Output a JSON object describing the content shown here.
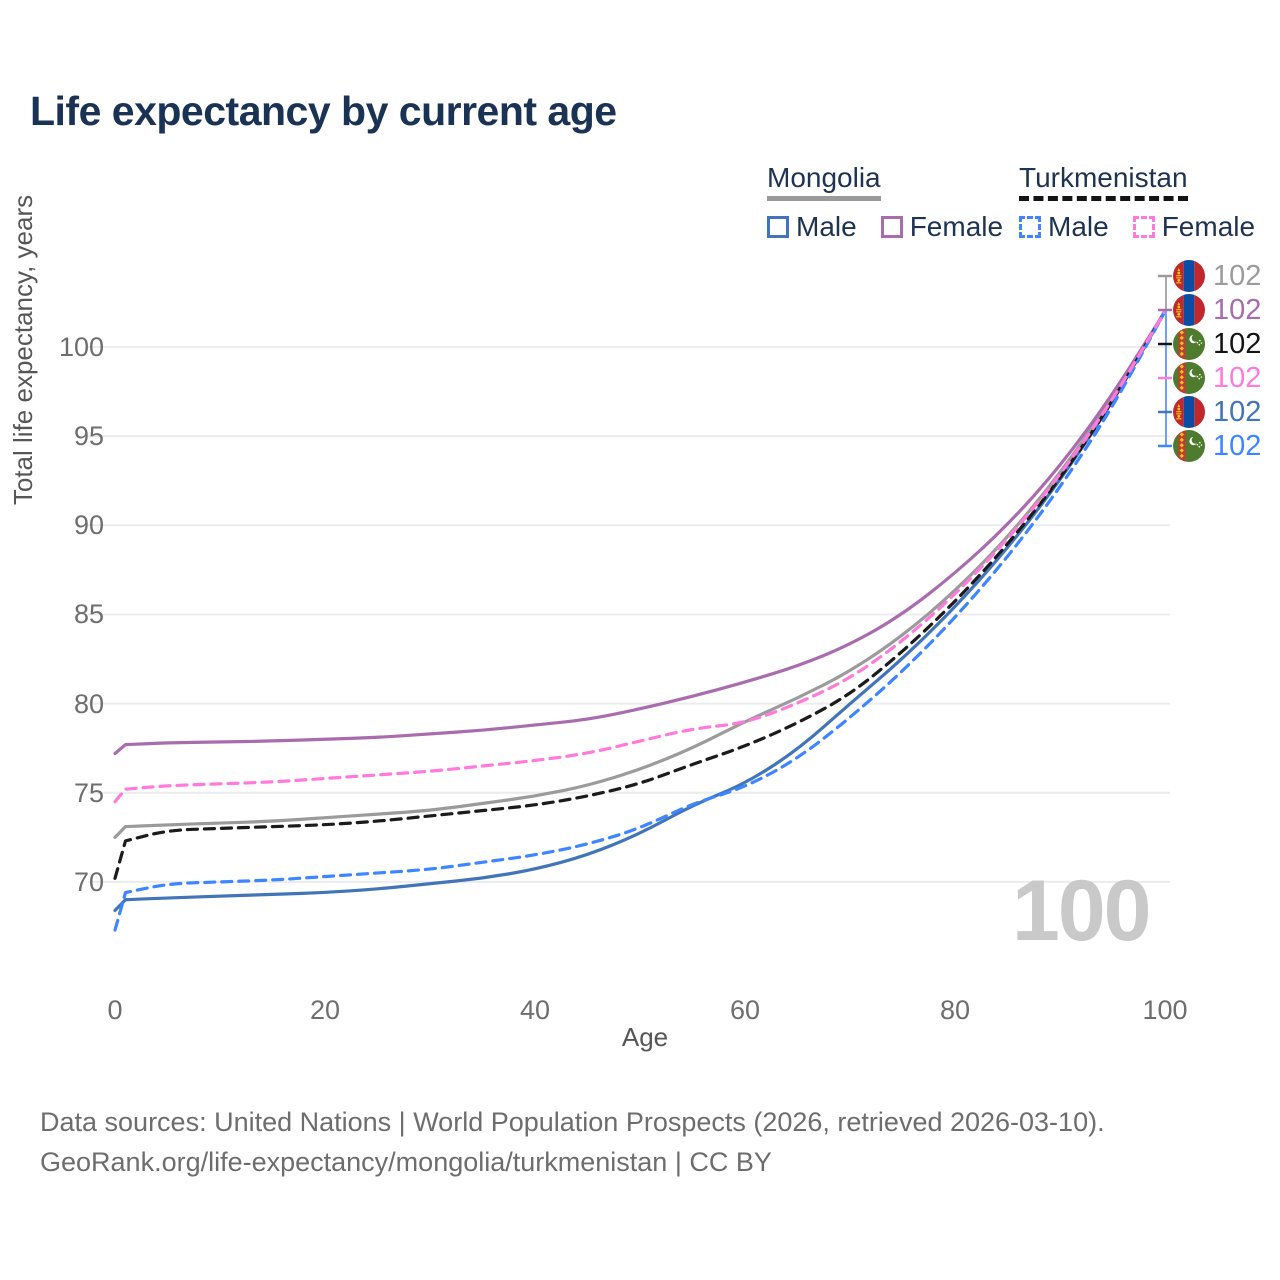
{
  "title": "Life expectancy by current age",
  "legend": {
    "mongolia": {
      "label": "Mongolia",
      "male_label": "Male",
      "female_label": "Female"
    },
    "turkmenistan": {
      "label": "Turkmenistan",
      "male_label": "Male",
      "female_label": "Female"
    }
  },
  "y_axis": {
    "title": "Total life expectancy, years",
    "ticks": [
      100,
      95,
      90,
      85,
      80,
      75,
      70
    ]
  },
  "x_axis": {
    "title": "Age",
    "ticks": [
      0,
      20,
      40,
      60,
      80,
      100
    ]
  },
  "watermark": "100",
  "colors": {
    "mongolia_both": "#9b9b9b",
    "mongolia_female": "#a96cae",
    "mongolia_male": "#4274b8",
    "turkmenistan_both": "#1b1b1b",
    "turkmenistan_female": "#ff7bdb",
    "turkmenistan_male": "#3e86ff",
    "title_text": "#1a3354",
    "gridline": "#ececec",
    "axis_text": "#6e6e6e"
  },
  "end_labels": [
    {
      "series": "mongolia-both",
      "flag": "mongolia",
      "value": "102",
      "color": "#9b9b9b"
    },
    {
      "series": "mongolia-female",
      "flag": "mongolia",
      "value": "102",
      "color": "#a96cae"
    },
    {
      "series": "turkmenistan-both",
      "flag": "turkmenistan",
      "value": "102",
      "color": "#141414"
    },
    {
      "series": "turkmenistan-female",
      "flag": "turkmenistan",
      "value": "102",
      "color": "#ff7bdb"
    },
    {
      "series": "mongolia-male",
      "flag": "mongolia",
      "value": "102",
      "color": "#4274b8"
    },
    {
      "series": "turkmenistan-male",
      "flag": "turkmenistan",
      "value": "102",
      "color": "#3e86ff"
    }
  ],
  "footer": {
    "line1": "Data sources: United Nations | World Population Prospects (2026, retrieved 2026-03-10).",
    "line2": "GeoRank.org/life-expectancy/mongolia/turkmenistan | CC BY"
  },
  "chart_data": {
    "type": "line",
    "title": "Life expectancy by current age",
    "xlabel": "Age",
    "ylabel": "Total life expectancy, years",
    "xlim": [
      0,
      100
    ],
    "ylim": [
      66,
      103
    ],
    "grid": "horizontal-only",
    "legend_position": "top-right",
    "x": [
      0,
      1,
      5,
      10,
      15,
      20,
      25,
      30,
      35,
      40,
      45,
      50,
      55,
      60,
      65,
      70,
      75,
      80,
      85,
      90,
      95,
      100
    ],
    "series": [
      {
        "name": "Mongolia — Both sexes",
        "country": "Mongolia",
        "sex": "Both",
        "style": "solid",
        "color": "#9b9b9b",
        "values": [
          72.5,
          73.1,
          73.2,
          73.3,
          73.4,
          73.6,
          73.8,
          74.0,
          74.4,
          74.8,
          75.4,
          76.3,
          77.5,
          79.0,
          80.3,
          81.8,
          83.8,
          86.3,
          89.3,
          92.9,
          97.1,
          102
        ]
      },
      {
        "name": "Mongolia — Male",
        "country": "Mongolia",
        "sex": "Male",
        "style": "solid",
        "color": "#4274b8",
        "values": [
          68.4,
          69.0,
          69.1,
          69.2,
          69.3,
          69.4,
          69.6,
          69.9,
          70.2,
          70.7,
          71.5,
          72.7,
          74.3,
          75.5,
          77.4,
          80.0,
          82.5,
          85.4,
          88.7,
          92.5,
          96.9,
          102
        ]
      },
      {
        "name": "Mongolia — Female",
        "country": "Mongolia",
        "sex": "Female",
        "style": "solid",
        "color": "#a96cae",
        "values": [
          77.2,
          77.7,
          77.8,
          77.85,
          77.9,
          78.0,
          78.1,
          78.3,
          78.5,
          78.8,
          79.1,
          79.7,
          80.4,
          81.2,
          82.1,
          83.3,
          85.0,
          87.3,
          90.0,
          93.3,
          97.3,
          102
        ]
      },
      {
        "name": "Turkmenistan — Both sexes",
        "country": "Turkmenistan",
        "sex": "Both",
        "style": "dashed",
        "color": "#1b1b1b",
        "values": [
          70.2,
          72.3,
          72.9,
          73.0,
          73.1,
          73.2,
          73.4,
          73.7,
          74.0,
          74.3,
          74.8,
          75.5,
          76.6,
          77.6,
          78.9,
          80.5,
          82.9,
          85.7,
          88.9,
          92.6,
          96.9,
          102
        ]
      },
      {
        "name": "Turkmenistan — Male",
        "country": "Turkmenistan",
        "sex": "Male",
        "style": "dashed",
        "color": "#3e86ff",
        "values": [
          67.3,
          69.4,
          69.9,
          70.0,
          70.1,
          70.3,
          70.5,
          70.7,
          71.1,
          71.5,
          72.1,
          73.0,
          74.4,
          75.3,
          76.9,
          79.2,
          81.8,
          84.8,
          88.2,
          92.1,
          96.6,
          102
        ]
      },
      {
        "name": "Turkmenistan — Female",
        "country": "Turkmenistan",
        "sex": "Female",
        "style": "dashed",
        "color": "#ff7bdb",
        "values": [
          74.5,
          75.2,
          75.4,
          75.5,
          75.6,
          75.8,
          76.0,
          76.2,
          76.5,
          76.8,
          77.2,
          77.9,
          78.6,
          78.9,
          80.0,
          81.4,
          83.5,
          86.1,
          89.2,
          92.8,
          97.0,
          102
        ]
      }
    ]
  }
}
